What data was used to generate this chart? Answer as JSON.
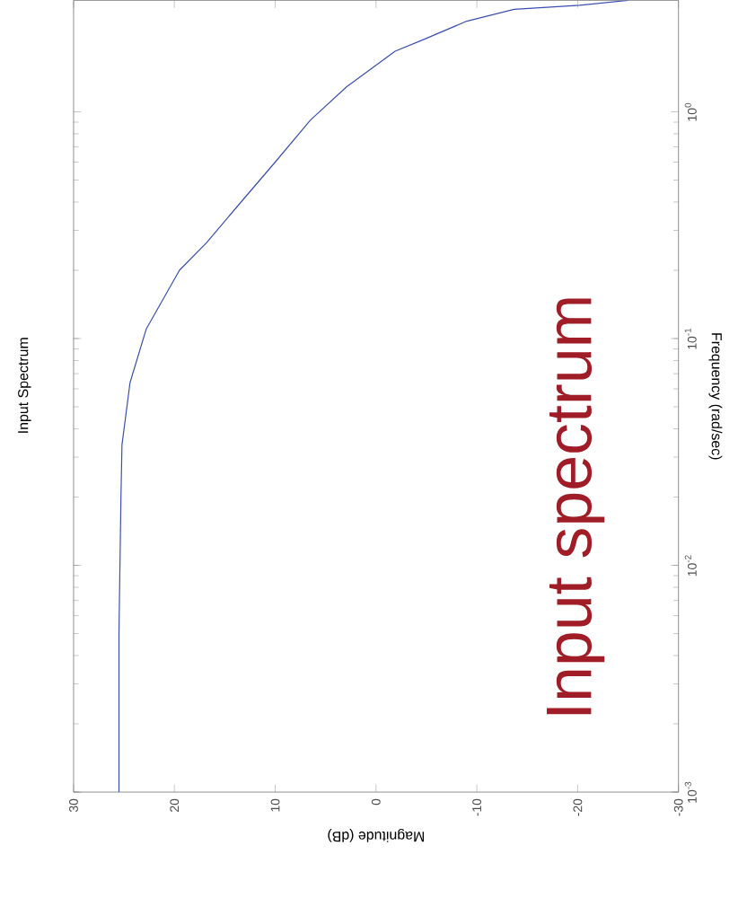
{
  "chart_data": {
    "type": "line",
    "title": "Input Spectrum",
    "xlabel": "Magnitude (dB)",
    "ylabel": "Frequency  (rad/sec)",
    "log": "y",
    "xlim": [
      30,
      -30
    ],
    "ylim": [
      0.001,
      3.1
    ],
    "xticks": [
      30,
      20,
      10,
      0,
      -10,
      -20,
      -30
    ],
    "yticks": [
      {
        "value": 0.001,
        "label": "10$^{-3}$"
      },
      {
        "value": 0.01,
        "label": "10$^{-2}$"
      },
      {
        "value": 0.1,
        "label": "10$^{-1}$"
      },
      {
        "value": 1,
        "label": "10$^{0}$"
      }
    ],
    "annotations": [
      "Input spectrum"
    ],
    "series": [
      {
        "color": "#3a4fb0",
        "x": [
          25.5,
          25.5,
          25.4,
          25.3,
          25.2,
          24.4,
          22.8,
          19.5,
          16.8,
          13.6,
          10.0,
          6.5,
          2.9,
          -1.9,
          -4.8,
          -9.0,
          -13.7,
          -20.2,
          -25
        ],
        "values": [
          0.001,
          0.005,
          0.01,
          0.02,
          0.034,
          0.064,
          0.11,
          0.2,
          0.265,
          0.39,
          0.6,
          0.92,
          1.29,
          1.85,
          2.09,
          2.51,
          2.83,
          2.95,
          3.1
        ]
      }
    ]
  }
}
